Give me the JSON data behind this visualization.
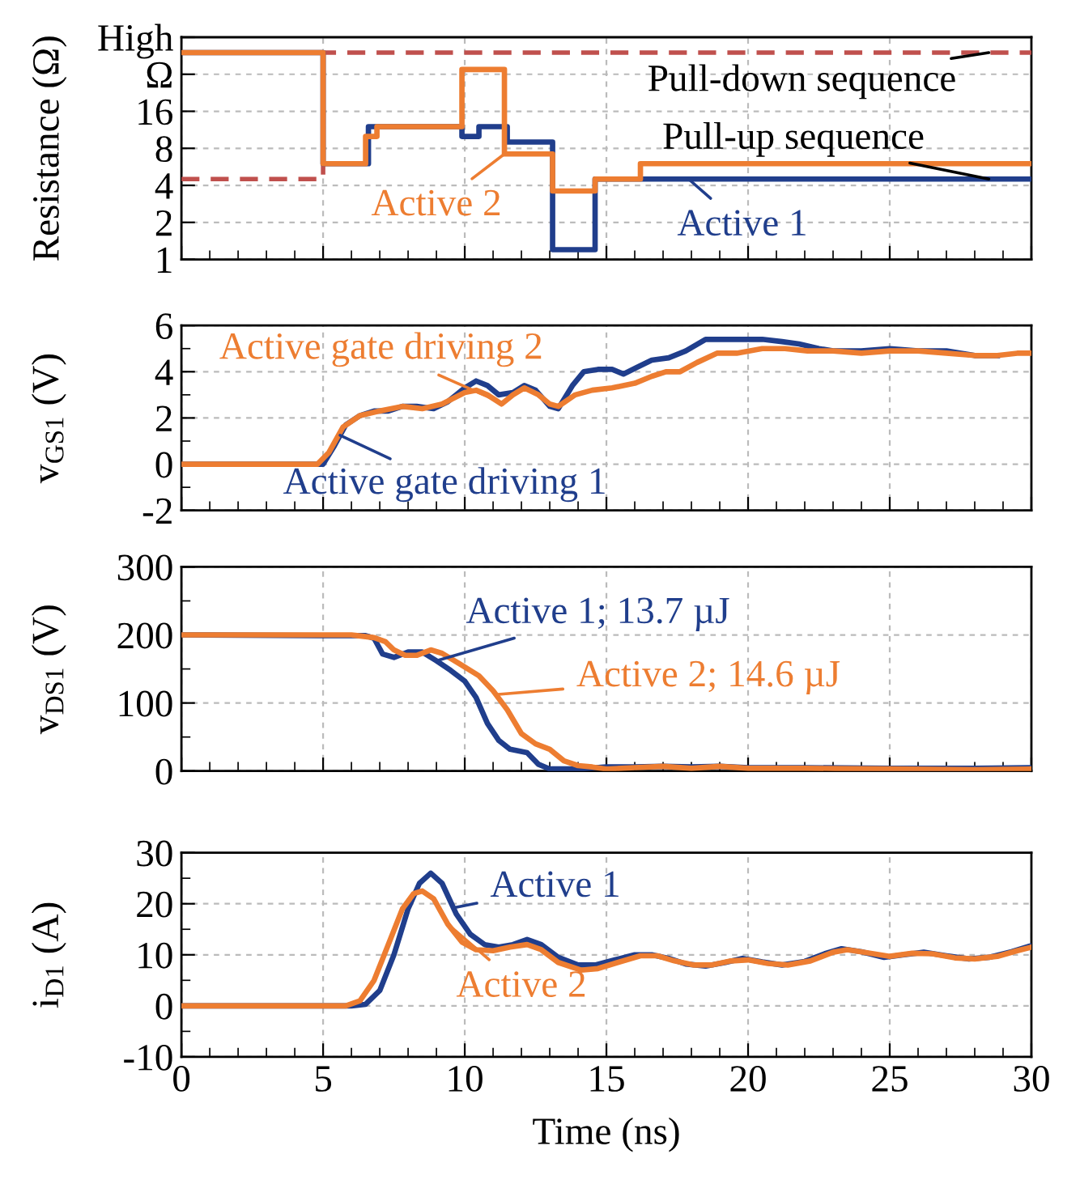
{
  "chart_data": [
    {
      "type": "step",
      "ylabel": "Resistance (Ω)",
      "log": "y",
      "xlim": [
        0,
        30
      ],
      "xticks": [
        0,
        5,
        10,
        15,
        20,
        25,
        30
      ],
      "ylim": [
        1,
        64
      ],
      "yticks": [
        1,
        2,
        4,
        8,
        16,
        {
          "value": 32,
          "label": "Ω"
        },
        {
          "value": 64,
          "label": "High"
        }
      ],
      "tick_labels": "y",
      "grid": true,
      "legend": "right",
      "series": [
        {
          "name": "Pull-down sequence",
          "color": "#c0504d",
          "line_style": "dashed",
          "x": [
            0,
            5,
            30
          ],
          "values": [
            4.5,
            48,
            48
          ]
        },
        {
          "name": "Active 1",
          "color": "#203e8c",
          "x": [
            0,
            5,
            6.6,
            9.9,
            10.5,
            11.5,
            13.1,
            14.6,
            30
          ],
          "values": [
            48,
            6,
            12,
            10,
            12,
            9,
            1.2,
            4.5,
            4.5
          ]
        },
        {
          "name": "Active 2",
          "color": "#ed7d31",
          "x": [
            0,
            5,
            6.5,
            6.9,
            9.9,
            11.4,
            13.1,
            14.6,
            16.2,
            30
          ],
          "values": [
            48,
            6,
            10,
            12,
            35,
            7.2,
            3.6,
            4.5,
            6,
            6
          ]
        }
      ],
      "annotations": [
        {
          "text": "Pull-up sequence",
          "x": 28.5,
          "y": 4.5
        }
      ]
    },
    {
      "type": "line",
      "ylabel": "v$_{GS1}$ (V)",
      "xlim": [
        0,
        30
      ],
      "xticks": [
        0,
        5,
        10,
        15,
        20,
        25,
        30
      ],
      "ylim": [
        -2,
        6
      ],
      "yticks": [
        -2,
        0,
        2,
        4,
        6
      ],
      "tick_labels": "y",
      "grid": true,
      "legend": "left",
      "series": [
        {
          "name": "Active gate driving 1",
          "color": "#203e8c",
          "x": [
            0,
            5,
            5.4,
            5.8,
            6.3,
            6.8,
            7.3,
            7.8,
            8.3,
            8.9,
            9.4,
            10,
            10.4,
            10.8,
            11.2,
            11.7,
            12.1,
            12.5,
            13.0,
            13.3,
            13.8,
            14.2,
            14.7,
            15.2,
            15.6,
            16.1,
            16.6,
            17.2,
            17.8,
            18.5,
            19.5,
            20.5,
            21.2,
            21.8,
            22.5,
            23,
            24,
            25,
            26,
            27,
            28,
            28.8
          ],
          "values": [
            0,
            0,
            0.8,
            1.7,
            2.1,
            2.3,
            2.3,
            2.5,
            2.5,
            2.4,
            2.7,
            3.3,
            3.6,
            3.4,
            3.0,
            3.1,
            3.4,
            3.2,
            2.5,
            2.4,
            3.4,
            4.0,
            4.1,
            4.1,
            3.9,
            4.2,
            4.5,
            4.6,
            4.9,
            5.4,
            5.4,
            5.4,
            5.3,
            5.2,
            5.0,
            4.9,
            4.9,
            5.0,
            4.9,
            4.9,
            4.7,
            4.7
          ]
        },
        {
          "name": "Active gate driving 2",
          "color": "#ed7d31",
          "x": [
            0,
            4.8,
            5.2,
            5.7,
            6.3,
            7,
            7.8,
            8.5,
            9.2,
            10,
            10.4,
            10.8,
            11.3,
            11.7,
            12.1,
            12.6,
            13.0,
            13.3,
            13.9,
            14.5,
            15.2,
            16,
            16.6,
            17.1,
            17.6,
            18.2,
            18.9,
            19.6,
            20.5,
            21.3,
            22.1,
            23,
            24,
            25,
            26,
            27,
            28,
            28.8,
            29.5,
            30
          ],
          "values": [
            0,
            0,
            0.5,
            1.6,
            2.1,
            2.3,
            2.5,
            2.4,
            2.6,
            3.1,
            3.2,
            3.0,
            2.6,
            3.0,
            3.3,
            3.0,
            2.6,
            2.5,
            3.0,
            3.2,
            3.3,
            3.5,
            3.8,
            4.0,
            4.0,
            4.4,
            4.8,
            4.8,
            5.0,
            5.0,
            4.9,
            4.9,
            4.8,
            4.9,
            4.9,
            4.8,
            4.7,
            4.7,
            4.8,
            4.8
          ]
        }
      ]
    },
    {
      "type": "line",
      "ylabel": "v$_{DS1}$ (V)",
      "xlim": [
        0,
        30
      ],
      "xticks": [
        0,
        5,
        10,
        15,
        20,
        25,
        30
      ],
      "ylim": [
        0,
        300
      ],
      "yticks": [
        0,
        100,
        200,
        300
      ],
      "tick_labels": "y",
      "grid": true,
      "legend": "center",
      "series": [
        {
          "name": "Active 1; 13.7 µJ",
          "color": "#203e8c",
          "x": [
            0,
            5,
            6.5,
            6.8,
            7.1,
            7.5,
            8,
            8.5,
            9,
            9.5,
            10,
            10.4,
            10.8,
            11.2,
            11.6,
            12.2,
            12.6,
            13,
            14,
            15,
            16,
            17,
            18,
            19,
            20,
            22,
            25,
            28,
            30
          ],
          "values": [
            200,
            199,
            199,
            195,
            172,
            167,
            175,
            175,
            162,
            148,
            132,
            108,
            70,
            45,
            32,
            27,
            10,
            3,
            3,
            6,
            6,
            7,
            6,
            7,
            5,
            5,
            4,
            4,
            5
          ]
        },
        {
          "name": "Active 2; 14.6 µJ",
          "color": "#ed7d31",
          "x": [
            0,
            6,
            6.2,
            6.8,
            7.2,
            7.5,
            7.9,
            8.3,
            8.8,
            9.2,
            9.8,
            10.5,
            11,
            11.5,
            12,
            12.5,
            13,
            13.5,
            14,
            14.5,
            15,
            16,
            17,
            18,
            19,
            20,
            22,
            25,
            28,
            30
          ],
          "values": [
            200,
            200,
            199,
            196,
            190,
            178,
            170,
            170,
            178,
            173,
            158,
            140,
            118,
            90,
            55,
            40,
            32,
            15,
            8,
            6,
            3,
            5,
            7,
            4,
            7,
            4,
            4,
            3,
            2,
            3
          ]
        }
      ]
    },
    {
      "type": "line",
      "xlabel": "Time (ns)",
      "ylabel": "i$_{D1}$ (A)",
      "xlim": [
        0,
        30
      ],
      "xticks": [
        0,
        5,
        10,
        15,
        20,
        25,
        30
      ],
      "ylim": [
        -10,
        30
      ],
      "yticks": [
        -10,
        0,
        10,
        20,
        30
      ],
      "grid": true,
      "legend": "center",
      "series": [
        {
          "name": "Active 1",
          "color": "#203e8c",
          "x": [
            0,
            6,
            6.5,
            7,
            7.5,
            8,
            8.4,
            8.8,
            9.2,
            9.7,
            10.2,
            10.7,
            11.2,
            11.7,
            12.2,
            12.7,
            13.3,
            14,
            14.6,
            15.3,
            16,
            16.6,
            17.2,
            17.8,
            18.5,
            19.2,
            19.8,
            20.5,
            21.2,
            22,
            22.7,
            23.3,
            24,
            24.8,
            25.5,
            26.2,
            27,
            27.8,
            28.5,
            29.3,
            30
          ],
          "values": [
            0,
            0,
            0.3,
            3,
            10,
            19,
            24,
            26,
            24,
            18,
            14,
            12,
            11.5,
            12,
            13,
            12,
            9.5,
            8,
            8,
            9,
            10,
            10,
            9.3,
            8.2,
            7.8,
            8.5,
            9.3,
            8.6,
            8.0,
            8.7,
            10.2,
            11.2,
            10.6,
            9.5,
            10,
            10.5,
            9.8,
            9.2,
            9.5,
            10.6,
            11.8
          ]
        },
        {
          "name": "Active 2",
          "color": "#ed7d31",
          "x": [
            0,
            5.8,
            6.3,
            6.8,
            7.3,
            7.8,
            8.2,
            8.5,
            8.9,
            9.4,
            9.9,
            10.4,
            11,
            11.6,
            12.2,
            12.7,
            13.3,
            14.1,
            14.7,
            15.4,
            16.2,
            16.8,
            17.4,
            18.1,
            18.7,
            19.4,
            20,
            20.7,
            21.4,
            22.2,
            23,
            23.5,
            24.2,
            25,
            25.8,
            26.5,
            27.3,
            28,
            28.8,
            29.5,
            30
          ],
          "values": [
            0,
            0,
            1,
            5,
            12,
            19,
            22,
            22.5,
            21,
            16,
            12.5,
            11,
            10.8,
            11.5,
            12,
            11,
            8.5,
            7,
            7.3,
            8.5,
            9.8,
            9.8,
            8.8,
            8,
            8,
            8.8,
            9,
            8.3,
            8.0,
            8.8,
            10.5,
            11,
            10.4,
            9.7,
            10.3,
            10.2,
            9.4,
            9.2,
            9.7,
            10.8,
            11.5
          ]
        }
      ]
    }
  ]
}
